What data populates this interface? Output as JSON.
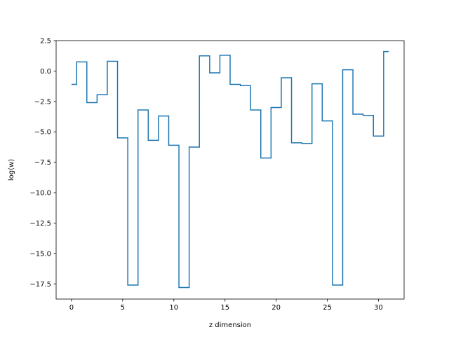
{
  "chart_data": {
    "type": "line",
    "drawstyle": "steps-mid",
    "title": "",
    "xlabel": "z dimension",
    "ylabel": "log(w)",
    "xlim": [
      -1.5,
      32.5
    ],
    "ylim": [
      -18.75,
      2.5
    ],
    "xticks": [
      0,
      5,
      10,
      15,
      20,
      25,
      30
    ],
    "xtick_labels": [
      "0",
      "5",
      "10",
      "15",
      "20",
      "25",
      "30"
    ],
    "yticks": [
      2.5,
      0.0,
      -2.5,
      -5.0,
      -7.5,
      -10.0,
      -12.5,
      -15.0,
      -17.5
    ],
    "ytick_labels": [
      "2.5",
      "0.0",
      "−2.5",
      "−5.0",
      "−7.5",
      "−10.0",
      "−12.5",
      "−15.0",
      "−17.5"
    ],
    "grid": false,
    "series": [
      {
        "color": "#1f77b4",
        "x": [
          0,
          1,
          2,
          3,
          4,
          5,
          6,
          7,
          8,
          9,
          10,
          11,
          12,
          13,
          14,
          15,
          16,
          17,
          18,
          19,
          20,
          21,
          22,
          23,
          24,
          25,
          26,
          27,
          28,
          29,
          30,
          31
        ],
        "y": [
          -1.1,
          0.75,
          -2.6,
          -1.95,
          0.8,
          -5.5,
          -17.6,
          -3.2,
          -5.7,
          -3.7,
          -6.1,
          -17.8,
          -6.25,
          1.25,
          -0.15,
          1.3,
          -1.1,
          -1.2,
          -3.2,
          -7.15,
          -3.0,
          -0.55,
          -5.9,
          -5.95,
          -1.05,
          -4.1,
          -17.6,
          0.1,
          -3.55,
          -3.65,
          -5.35,
          1.6
        ]
      }
    ]
  }
}
